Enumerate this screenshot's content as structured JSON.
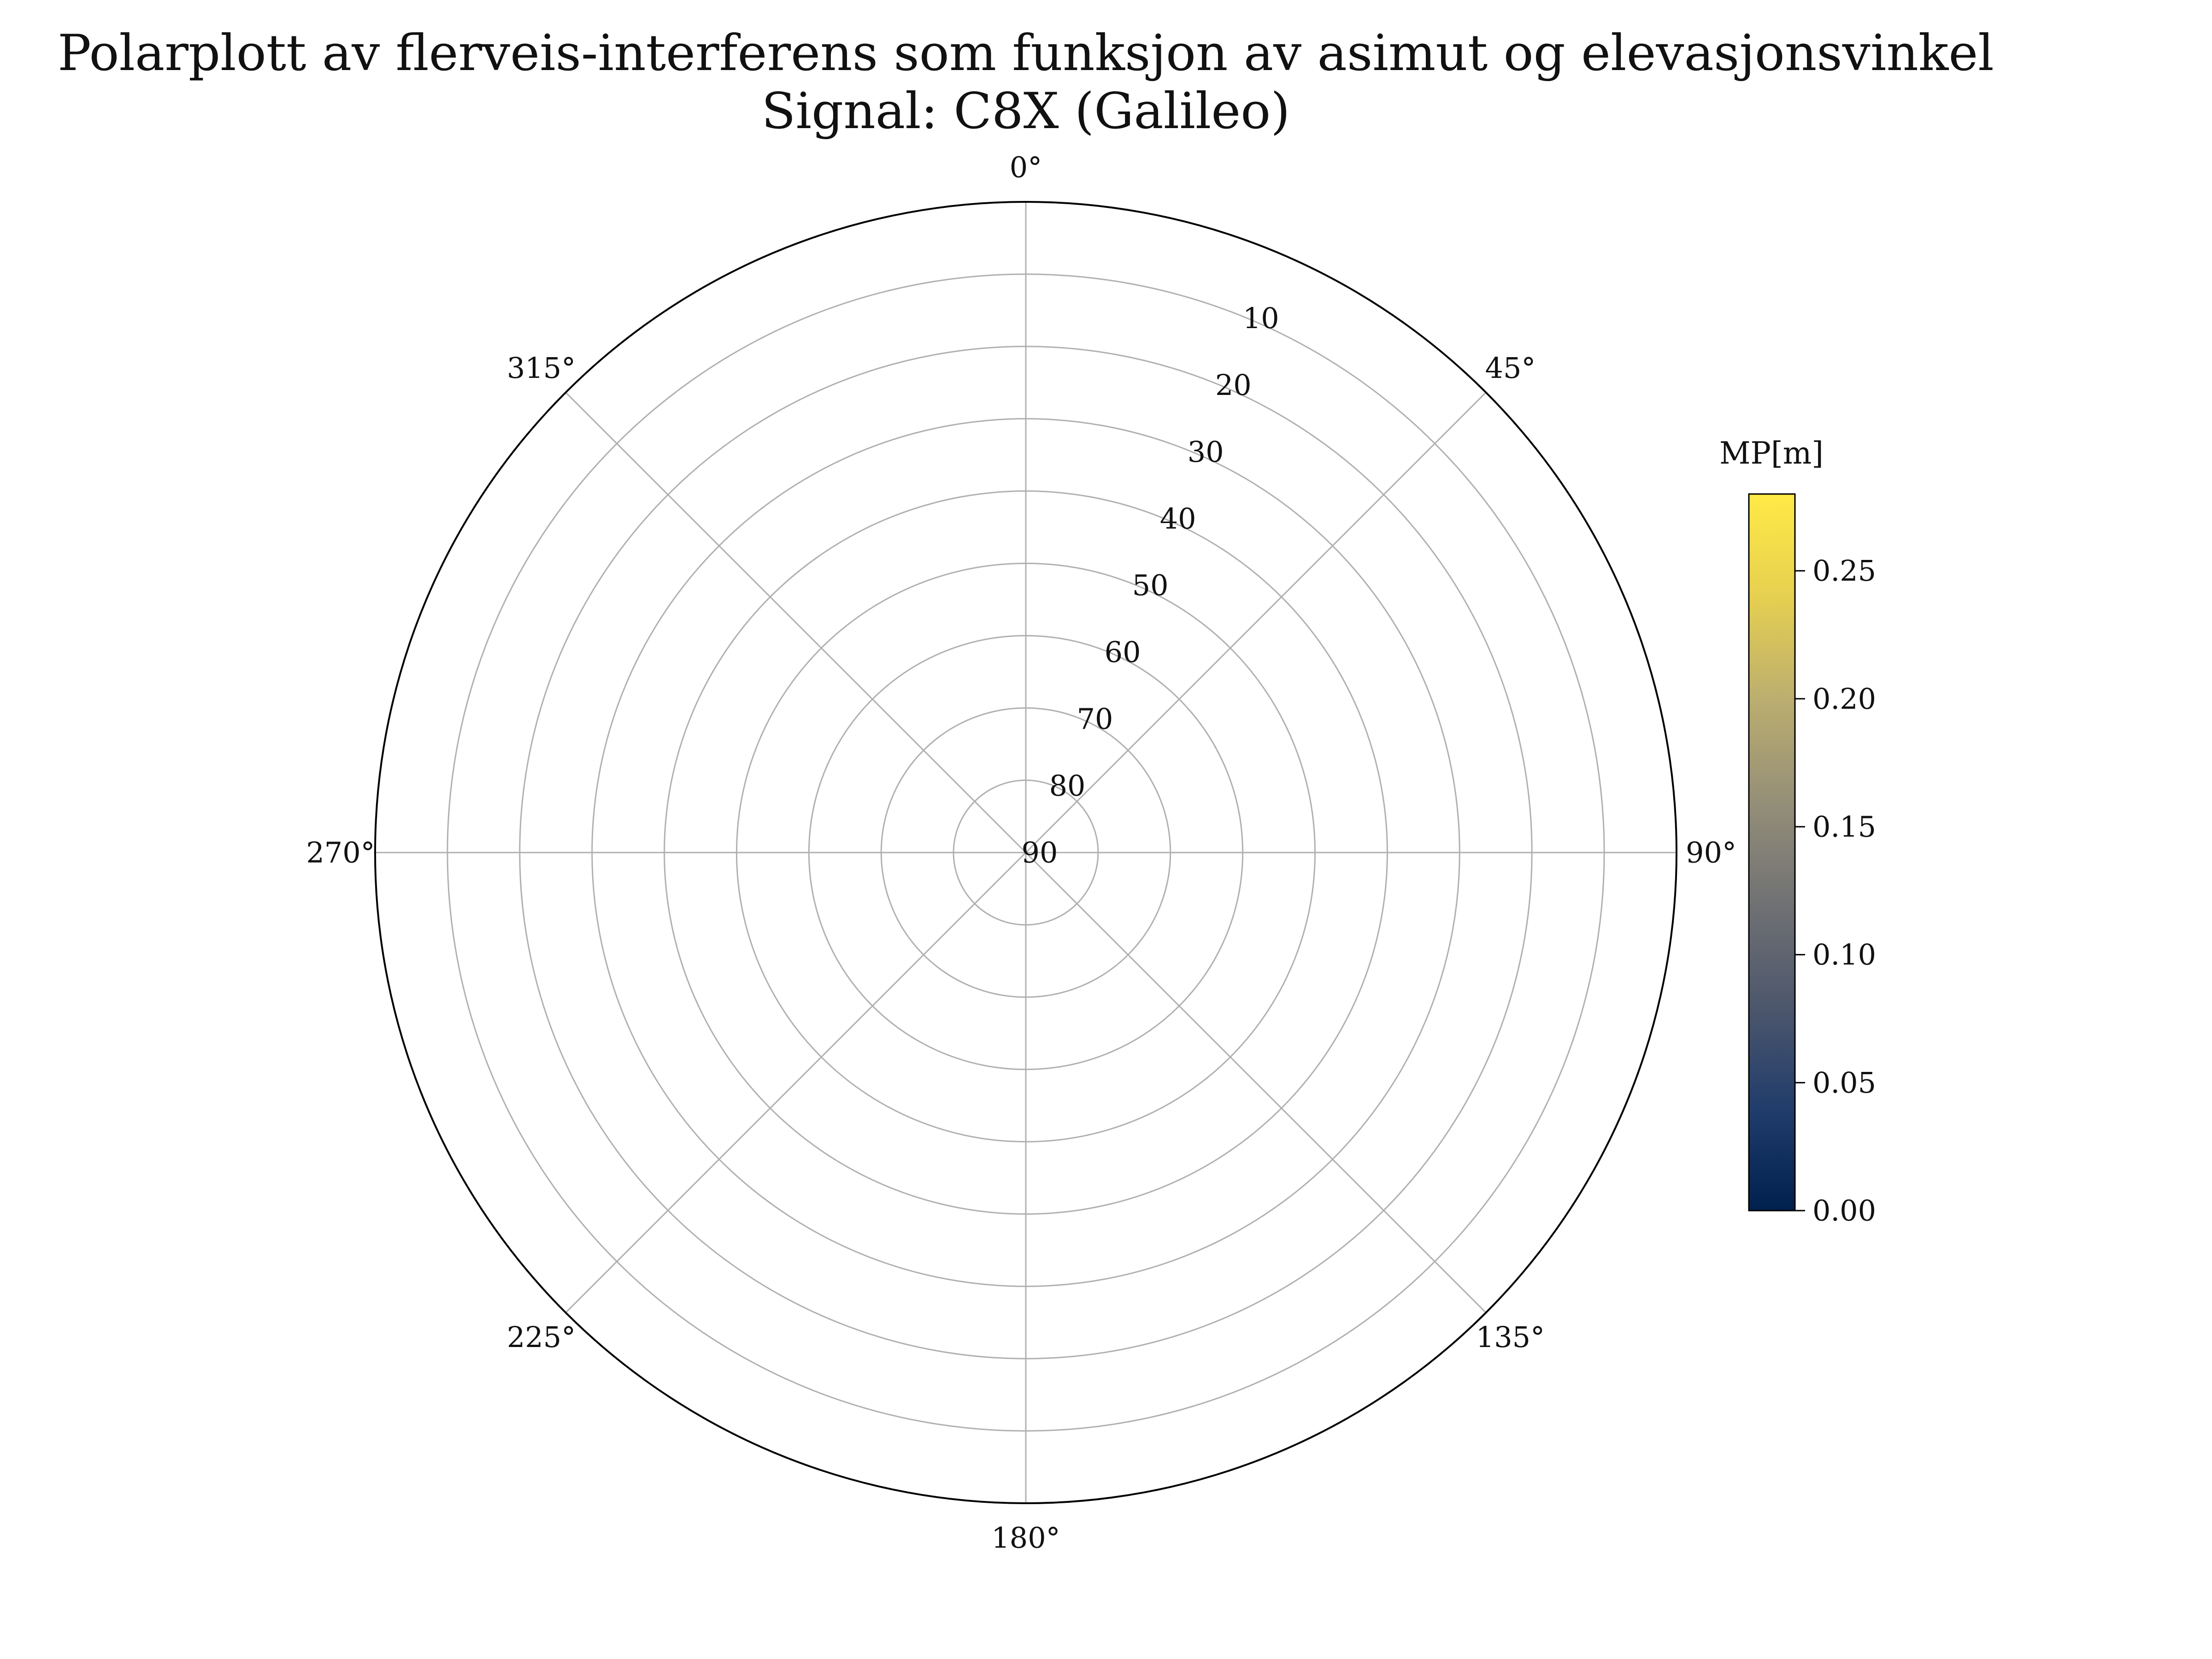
{
  "chart_data": {
    "type": "polar-scatter",
    "title": "Polarplott av flerveis-interferens som funksjon av asimut og elevasjonsvinkel",
    "subtitle": "Signal: C8X (Galileo)",
    "theta_direction": "clockwise",
    "theta_zero": "N",
    "theta_ticks": [
      0,
      45,
      90,
      135,
      180,
      225,
      270,
      315
    ],
    "theta_tick_labels": [
      "0°",
      "45°",
      "90°",
      "135°",
      "180°",
      "225°",
      "270°",
      "315°"
    ],
    "r_ticks": [
      10,
      20,
      30,
      40,
      50,
      60,
      70,
      80,
      90
    ],
    "r_tick_labels": [
      "10",
      "20",
      "30",
      "40",
      "50",
      "60",
      "70",
      "80",
      "90"
    ],
    "r_range": [
      90,
      0
    ],
    "r_label_angle": 22.5,
    "grid": true,
    "points": [],
    "colorbar": {
      "label": "MP[m]",
      "colormap": "cividis",
      "range": [
        0,
        0.28
      ],
      "ticks": [
        0.0,
        0.05,
        0.1,
        0.15,
        0.2,
        0.25
      ],
      "tick_labels": [
        "0.00",
        "0.05",
        "0.10",
        "0.15",
        "0.20",
        "0.25"
      ],
      "colors": [
        "#00204d",
        "#213d6b",
        "#4d576c",
        "#707173",
        "#958f78",
        "#bcae6f",
        "#e6d050",
        "#ffea46"
      ]
    }
  }
}
